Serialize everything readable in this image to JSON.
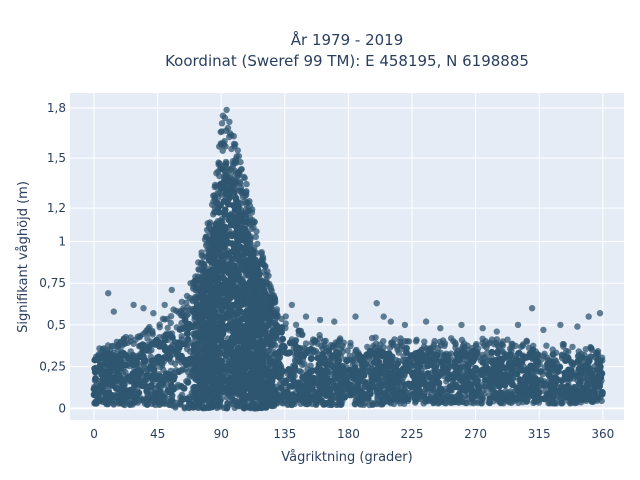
{
  "chart_data": {
    "type": "scatter",
    "title_line1": "År 1979 - 2019",
    "title_line2": "Koordinat (Sweref 99 TM): E 458195, N 6198885",
    "xlabel": "Vågriktning (grader)",
    "ylabel": "Signifikant våghöjd (m)",
    "xlim": [
      -17,
      375
    ],
    "ylim": [
      -0.07,
      1.89
    ],
    "x_ticks": [
      0,
      45,
      90,
      135,
      180,
      225,
      270,
      315,
      360
    ],
    "x_tick_labels": [
      "0",
      "45",
      "90",
      "135",
      "180",
      "225",
      "270",
      "315",
      "360"
    ],
    "y_ticks": [
      0,
      0.25,
      0.5,
      0.75,
      1,
      1.2,
      1.5,
      1.8
    ],
    "y_tick_labels": [
      "0",
      "0,25",
      "0,5",
      "0,75",
      "1",
      "1,2",
      "1,5",
      "1,8"
    ],
    "grid": true,
    "series": [
      {
        "color": "#2f5670",
        "envelope_x": [
          0,
          10,
          20,
          30,
          40,
          50,
          60,
          70,
          75,
          80,
          85,
          88,
          90,
          93,
          96,
          100,
          104,
          108,
          112,
          116,
          120,
          125,
          130,
          135,
          140,
          150,
          160,
          180,
          200,
          225,
          250,
          270,
          300,
          320,
          340,
          360
        ],
        "envelope_upper": [
          0.4,
          0.38,
          0.42,
          0.45,
          0.5,
          0.55,
          0.62,
          0.8,
          0.92,
          1.1,
          1.35,
          1.55,
          1.75,
          1.82,
          1.72,
          1.6,
          1.5,
          1.35,
          1.2,
          1.05,
          0.9,
          0.75,
          0.65,
          0.58,
          0.52,
          0.46,
          0.44,
          0.42,
          0.43,
          0.42,
          0.42,
          0.42,
          0.41,
          0.4,
          0.38,
          0.36
        ],
        "envelope_lower": [
          0.03,
          0.02,
          0.02,
          0.02,
          0.02,
          0.02,
          0.0,
          0.0,
          0.0,
          0.0,
          0.0,
          0.0,
          0.0,
          0.0,
          0.0,
          0.0,
          0.0,
          0.0,
          0.0,
          0.0,
          0.0,
          0.01,
          0.02,
          0.02,
          0.02,
          0.02,
          0.02,
          0.02,
          0.02,
          0.03,
          0.03,
          0.03,
          0.03,
          0.03,
          0.03,
          0.04
        ],
        "outliers": [
          [
            10,
            0.69
          ],
          [
            14,
            0.58
          ],
          [
            28,
            0.62
          ],
          [
            35,
            0.6
          ],
          [
            42,
            0.57
          ],
          [
            50,
            0.62
          ],
          [
            55,
            0.71
          ],
          [
            140,
            0.62
          ],
          [
            150,
            0.55
          ],
          [
            160,
            0.53
          ],
          [
            170,
            0.52
          ],
          [
            185,
            0.55
          ],
          [
            200,
            0.63
          ],
          [
            205,
            0.55
          ],
          [
            210,
            0.52
          ],
          [
            220,
            0.5
          ],
          [
            235,
            0.52
          ],
          [
            245,
            0.48
          ],
          [
            260,
            0.5
          ],
          [
            275,
            0.48
          ],
          [
            285,
            0.46
          ],
          [
            300,
            0.5
          ],
          [
            310,
            0.6
          ],
          [
            318,
            0.47
          ],
          [
            330,
            0.5
          ],
          [
            342,
            0.49
          ],
          [
            350,
            0.55
          ],
          [
            358,
            0.57
          ]
        ]
      }
    ]
  }
}
